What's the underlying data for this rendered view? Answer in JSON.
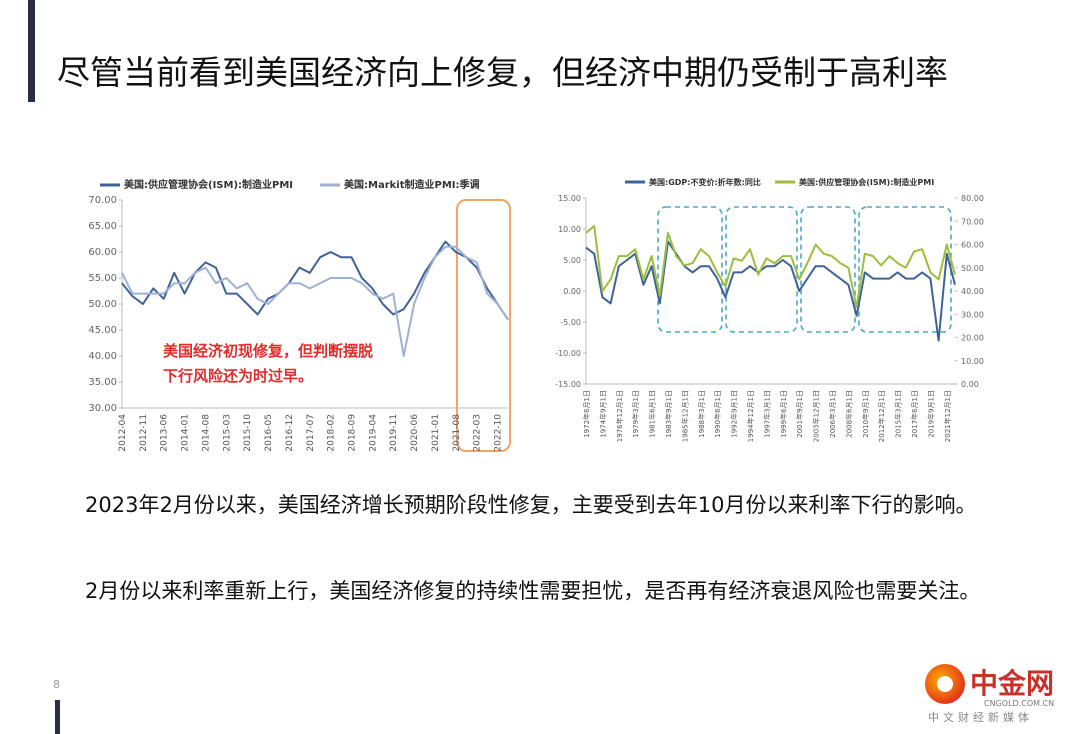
{
  "slide": {
    "title": "尽管当前看到美国经济向上修复，但经济中期仍受制于高利率",
    "paragraphs": [
      "2023年2月份以来，美国经济增长预期阶段性修复，主要受到去年10月份以来利率下行的影响。",
      "2月份以来利率重新上行，美国经济修复的持续性需要担忧，是否再有经济衰退风险也需要关注。"
    ],
    "page_number": "8",
    "logo": {
      "name": "中金网",
      "domain": "CNGOLD.COM.CN",
      "slogan": "中文财经新媒体"
    }
  },
  "chart_data": [
    {
      "type": "line",
      "annotation": [
        "美国经济初现修复，但判断摆脱",
        "下行风险还为时过早。"
      ],
      "categories": [
        "2012-04",
        null,
        "2012-11",
        null,
        "2013-06",
        null,
        "2014-01",
        null,
        "2014-08",
        null,
        "2015-03",
        null,
        "2015-10",
        null,
        "2016-05",
        null,
        "2016-12",
        null,
        "2017-07",
        null,
        "2018-02",
        null,
        "2018-09",
        null,
        "2019-04",
        null,
        "2019-11",
        null,
        "2020-06",
        null,
        "2021-01",
        null,
        "2021-08",
        null,
        "2022-03",
        null,
        "2022-10",
        null
      ],
      "series": [
        {
          "name": "美国:供应管理协会(ISM):制造业PMI",
          "color": "#3f6399",
          "values": [
            54,
            51.5,
            50,
            53,
            51,
            56,
            52,
            56,
            58,
            57,
            52,
            52,
            50,
            48,
            51,
            52,
            54,
            57,
            56,
            59,
            60,
            59,
            59,
            55,
            53,
            50,
            48,
            49,
            52,
            56,
            59,
            62,
            60,
            59,
            57,
            53,
            50,
            47
          ]
        },
        {
          "name": "美国:Markit制造业PMI:季调",
          "color": "#9db2d6",
          "values": [
            56,
            52,
            52,
            52,
            52,
            54,
            54,
            56,
            57,
            54,
            55,
            53,
            54,
            51,
            50,
            52,
            54,
            54,
            53,
            54,
            55,
            55,
            55,
            54,
            52,
            51,
            52,
            40,
            50,
            55,
            59,
            61,
            61,
            59,
            58,
            52,
            50,
            47
          ]
        }
      ],
      "ylim": [
        30,
        70
      ],
      "yticks": [
        {
          "value": 30,
          "label": "30.00"
        },
        {
          "value": 35,
          "label": "35.00"
        },
        {
          "value": 40,
          "label": "40.00"
        },
        {
          "value": 45,
          "label": "45.00"
        },
        {
          "value": 50,
          "label": "50.00"
        },
        {
          "value": 55,
          "label": "55.00"
        },
        {
          "value": 60,
          "label": "60.00"
        },
        {
          "value": 65,
          "label": "65.00"
        },
        {
          "value": 70,
          "label": "70.00"
        }
      ]
    },
    {
      "type": "line",
      "categories": [
        "1972年6月1日",
        null,
        "1974年9月1日",
        null,
        "1976年12月1日",
        null,
        "1979年3月1日",
        null,
        "1981年6月1日",
        null,
        "1983年9月1日",
        null,
        "1985年12月1日",
        null,
        "1988年3月1日",
        null,
        "1990年6月1日",
        null,
        "1992年9月1日",
        null,
        "1994年12月1日",
        null,
        "1997年3月1日",
        null,
        "1999年6月1日",
        null,
        "2001年9月1日",
        null,
        "2003年12月1日",
        null,
        "2006年3月1日",
        null,
        "2008年6月1日",
        null,
        "2010年9月1日",
        null,
        "2012年12月1日",
        null,
        "2015年3月1日",
        null,
        "2017年6月1日",
        null,
        "2019年9月1日",
        null,
        "2021年12月1日",
        null
      ],
      "series": [
        {
          "name": "美国:GDP:不变价:折年数:同比",
          "color": "#3f6399",
          "values": [
            7,
            6,
            -1,
            -2,
            4,
            5,
            6,
            1,
            4,
            -2,
            8,
            6,
            4,
            3,
            4,
            4,
            2,
            -1,
            3,
            3,
            4,
            3,
            4,
            4,
            5,
            4,
            0,
            2,
            4,
            4,
            3,
            2,
            1,
            -4,
            3,
            2,
            2,
            2,
            3,
            2,
            2,
            3,
            2,
            -8,
            6,
            1
          ]
        },
        {
          "name": "美国:供应管理协会(ISM):制造业PMI",
          "color": "#9bbf3b",
          "axis": "y2",
          "values": [
            65,
            68,
            40,
            45,
            55,
            55,
            58,
            45,
            55,
            38,
            65,
            55,
            51,
            52,
            58,
            55,
            48,
            42,
            54,
            53,
            58,
            47,
            54,
            52,
            55,
            55,
            45,
            52,
            60,
            56,
            55,
            52,
            50,
            33,
            56,
            55,
            51,
            55,
            52,
            50,
            57,
            58,
            48,
            45,
            60,
            47
          ]
        }
      ],
      "ylim": [
        -15,
        15
      ],
      "yticks": [
        {
          "value": -15,
          "label": "-15.00"
        },
        {
          "value": -10,
          "label": "-10.00"
        },
        {
          "value": -5,
          "label": "-5.00"
        },
        {
          "value": 0,
          "label": "0.00"
        },
        {
          "value": 5,
          "label": "5.00"
        },
        {
          "value": 10,
          "label": "10.00"
        },
        {
          "value": 15,
          "label": "15.00"
        }
      ],
      "y2lim": [
        0,
        80
      ],
      "y2ticks": [
        {
          "value": 0,
          "label": "0.00"
        },
        {
          "value": 10,
          "label": "10.00"
        },
        {
          "value": 20,
          "label": "20.00"
        },
        {
          "value": 30,
          "label": "30.00"
        },
        {
          "value": 40,
          "label": "40.00"
        },
        {
          "value": 50,
          "label": "50.00"
        },
        {
          "value": 60,
          "label": "60.00"
        },
        {
          "value": 70,
          "label": "70.00"
        },
        {
          "value": 80,
          "label": "80.00"
        }
      ]
    }
  ]
}
